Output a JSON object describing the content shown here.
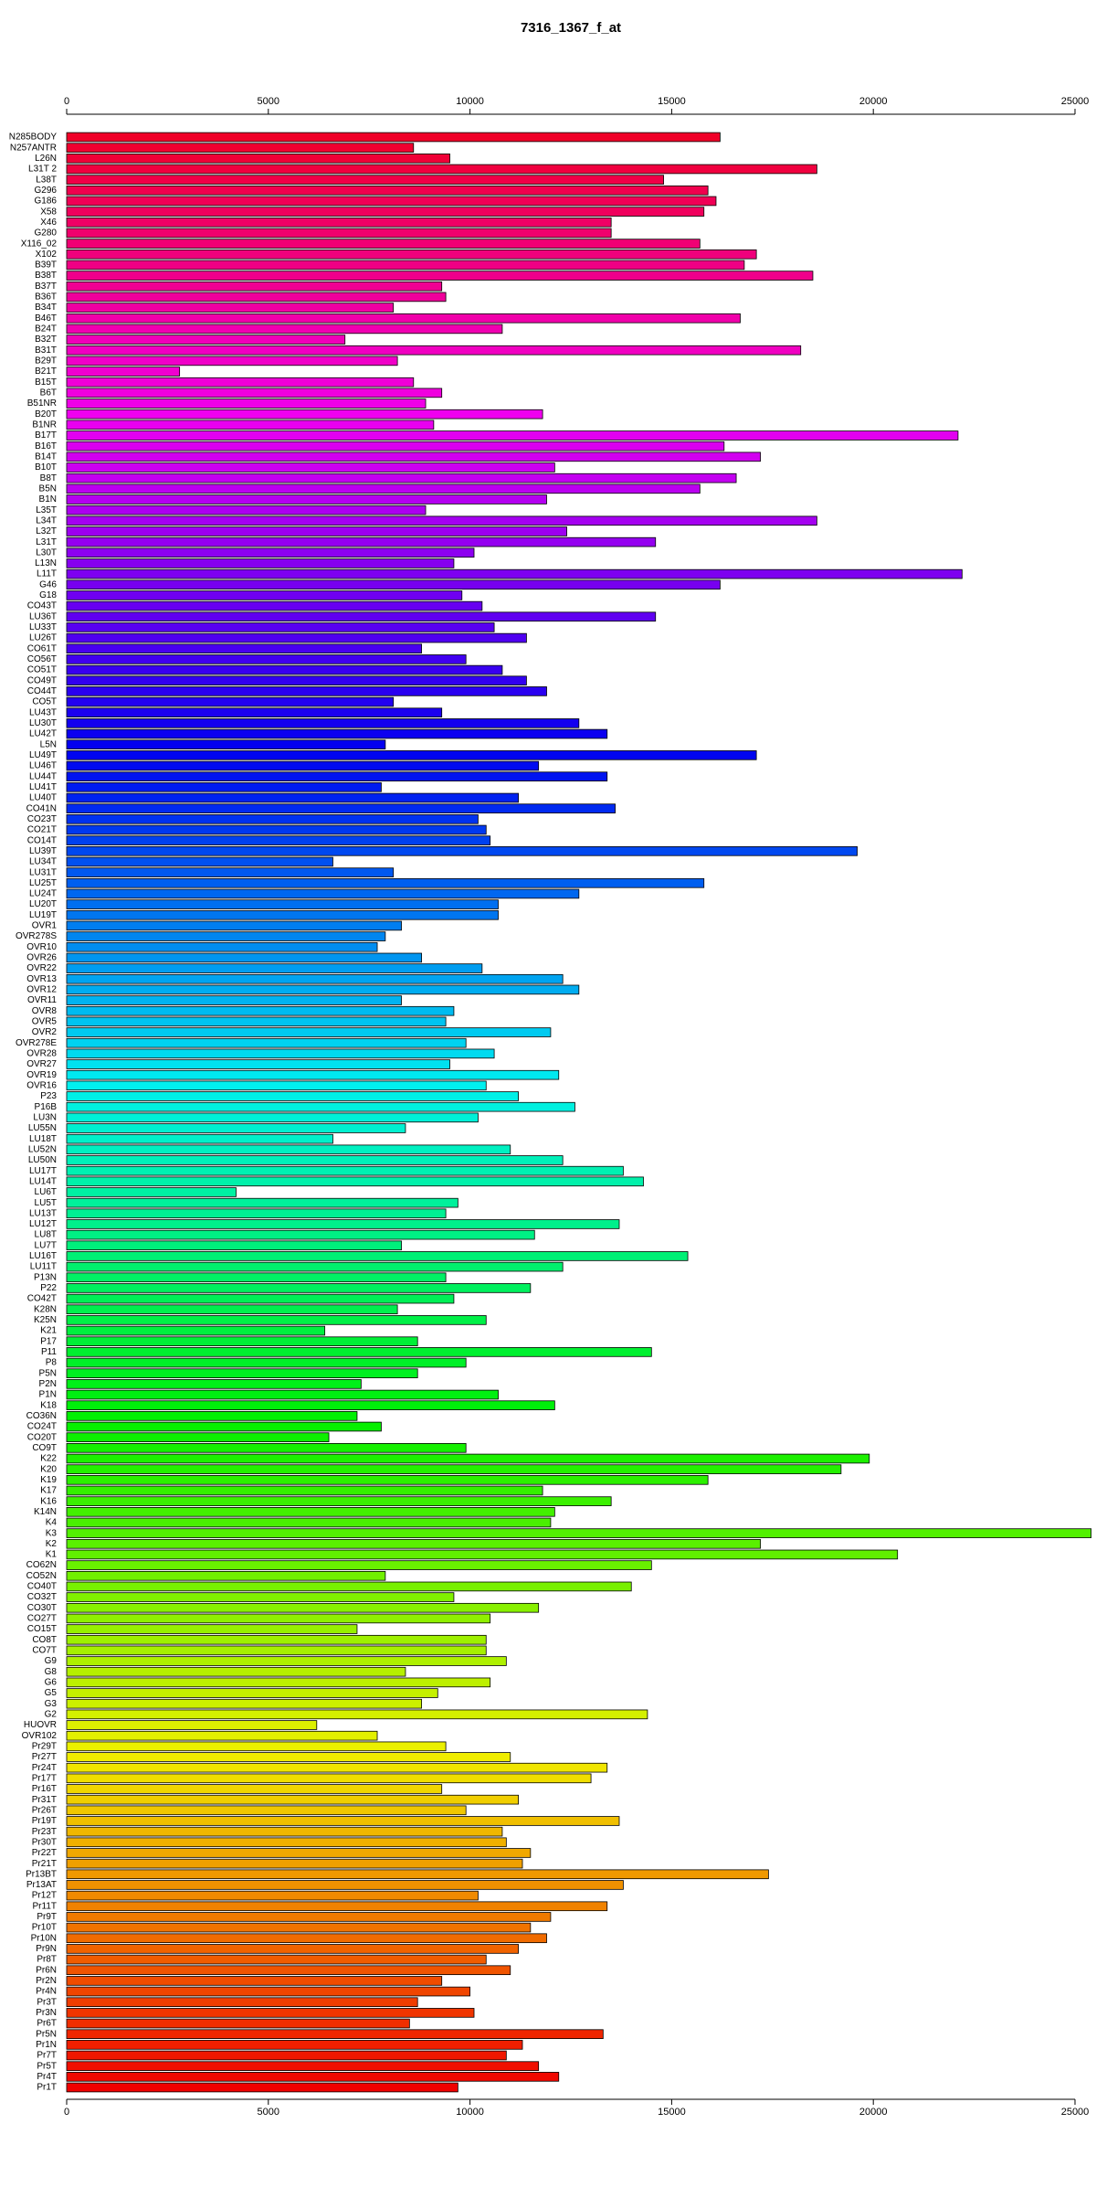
{
  "chart_data": {
    "type": "barh",
    "title": "7316_1367_f_at",
    "categories": [
      "N285BODY",
      "N257ANTR",
      "L26N",
      "L31T 2",
      "L38T",
      "G296",
      "G186",
      "X58",
      "X46",
      "G280",
      "X116_02",
      "X102",
      "B39T",
      "B38T",
      "B37T",
      "B36T",
      "B34T",
      "B46T",
      "B24T",
      "B32T",
      "B31T",
      "B29T",
      "B21T",
      "B15T",
      "B6T",
      "B51NR",
      "B20T",
      "B1NR",
      "B17T",
      "B16T",
      "B14T",
      "B10T",
      "B8T",
      "B5N",
      "B1N",
      "L35T",
      "L34T",
      "L32T",
      "L31T",
      "L30T",
      "L13N",
      "L11T",
      "G46",
      "G18",
      "CO43T",
      "LU36T",
      "LU33T",
      "LU26T",
      "CO61T",
      "CO56T",
      "CO51T",
      "CO49T",
      "CO44T",
      "CO5T",
      "LU43T",
      "LU30T",
      "LU42T",
      "L5N",
      "LU49T",
      "LU46T",
      "LU44T",
      "LU41T",
      "LU40T",
      "CO41N",
      "CO23T",
      "CO21T",
      "CO14T",
      "LU39T",
      "LU34T",
      "LU31T",
      "LU25T",
      "LU24T",
      "LU20T",
      "LU19T",
      "OVR1",
      "OVR278S",
      "OVR10",
      "OVR26",
      "OVR22",
      "OVR13",
      "OVR12",
      "OVR11",
      "OVR8",
      "OVR5",
      "OVR2",
      "OVR278E",
      "OVR28",
      "OVR27",
      "OVR19",
      "OVR16",
      "P23",
      "P16B",
      "LU3N",
      "LU55N",
      "LU18T",
      "LU52N",
      "LU50N",
      "LU17T",
      "LU14T",
      "LU6T",
      "LU5T",
      "LU13T",
      "LU12T",
      "LU8T",
      "LU7T",
      "LU16T",
      "LU11T",
      "P13N",
      "P22",
      "CO42T",
      "K28N",
      "K25N",
      "K21",
      "P17",
      "P11",
      "P8",
      "P5N",
      "P2N",
      "P1N",
      "K18",
      "CO36N",
      "CO24T",
      "CO20T",
      "CO9T",
      "K22",
      "K20",
      "K19",
      "K17",
      "K16",
      "K14N",
      "K4",
      "K3",
      "K2",
      "K1",
      "CO62N",
      "CO52N",
      "CO40T",
      "CO32T",
      "CO30T",
      "CO27T",
      "CO15T",
      "CO8T",
      "CO7T",
      "G9",
      "G8",
      "G6",
      "G5",
      "G3",
      "G2",
      "HUOVR",
      "OVR102",
      "Pr29T",
      "Pr27T",
      "Pr24T",
      "Pr17T",
      "Pr16T",
      "Pr31T",
      "Pr26T",
      "Pr19T",
      "Pr23T",
      "Pr30T",
      "Pr22T",
      "Pr21T",
      "Pr13BT",
      "Pr13AT",
      "Pr12T",
      "Pr11T",
      "Pr9T",
      "Pr10T",
      "Pr10N",
      "Pr9N",
      "Pr8T",
      "Pr6N",
      "Pr2N",
      "Pr4N",
      "Pr3T",
      "Pr3N",
      "Pr6T",
      "Pr5N",
      "Pr1N",
      "Pr7T",
      "Pr5T",
      "Pr4T",
      "Pr1T"
    ],
    "values": [
      16200,
      8600,
      9500,
      18600,
      14800,
      15900,
      16100,
      15800,
      13500,
      13500,
      15700,
      17100,
      16800,
      18500,
      9300,
      9400,
      8100,
      16700,
      10800,
      6900,
      18200,
      8200,
      2800,
      8600,
      9300,
      8900,
      11800,
      9100,
      22100,
      16300,
      17200,
      12100,
      16600,
      15700,
      11900,
      8900,
      18600,
      12400,
      14600,
      10100,
      9600,
      22200,
      16200,
      9800,
      10300,
      14600,
      10600,
      11400,
      8800,
      9900,
      10800,
      11400,
      11900,
      8100,
      9300,
      12700,
      13400,
      7900,
      17100,
      11700,
      13400,
      7800,
      11200,
      13600,
      10200,
      10400,
      10500,
      19600,
      6600,
      8100,
      15800,
      12700,
      10700,
      10700,
      8300,
      7900,
      7700,
      8800,
      10300,
      12300,
      12700,
      8300,
      9600,
      9400,
      12000,
      9900,
      10600,
      9500,
      12200,
      10400,
      11200,
      12600,
      10200,
      8400,
      6600,
      11000,
      12300,
      13800,
      14300,
      4200,
      9700,
      9400,
      13700,
      11600,
      8300,
      15400,
      12300,
      9400,
      11500,
      9600,
      8200,
      10400,
      6400,
      8700,
      14500,
      9900,
      8700,
      7300,
      10700,
      12100,
      7200,
      7800,
      6500,
      9900,
      19900,
      19200,
      15900,
      11800,
      13500,
      12100,
      12000,
      25400,
      17200,
      20600,
      14500,
      7900,
      14000,
      9600,
      11700,
      10500,
      7200,
      10400,
      10400,
      10900,
      8400,
      10500,
      9200,
      8800,
      14400,
      6200,
      7700,
      9400,
      11000,
      13400,
      13000,
      9300,
      11200,
      9900,
      13700,
      10800,
      10900,
      11500,
      11300,
      17400,
      13800,
      10200,
      13400,
      12000,
      11500,
      11900,
      11200,
      10400,
      11000,
      9300,
      10000,
      8700,
      10100,
      8500,
      13300,
      11300,
      10900,
      11700,
      12200,
      9700
    ],
    "hue_range": [
      350,
      0
    ],
    "xlim": [
      0,
      25000
    ],
    "xticks": [
      0,
      5000,
      10000,
      15000,
      20000,
      25000
    ]
  }
}
